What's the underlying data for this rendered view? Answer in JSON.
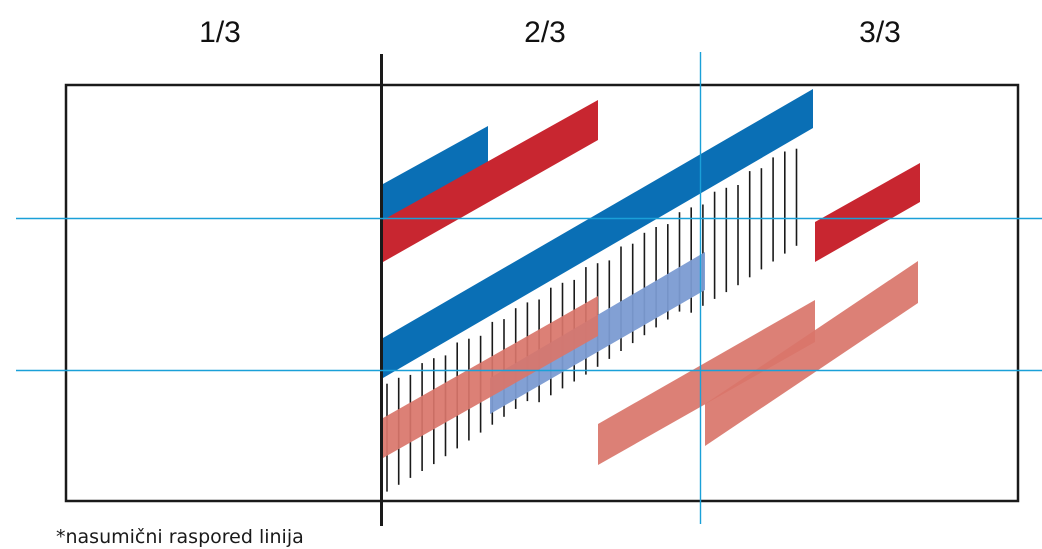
{
  "column_labels": [
    "1/3",
    "2/3",
    "3/3"
  ],
  "footnote": "*nasumični raspored linija",
  "colors": {
    "frame": "#1a1a1a",
    "guide": "#1aa0d8",
    "blue": "#0a6fb5",
    "red": "#c82630",
    "light_blue": "#7b9bd2",
    "salmon": "#d9756a",
    "hatch": "#1a1a1a"
  }
}
